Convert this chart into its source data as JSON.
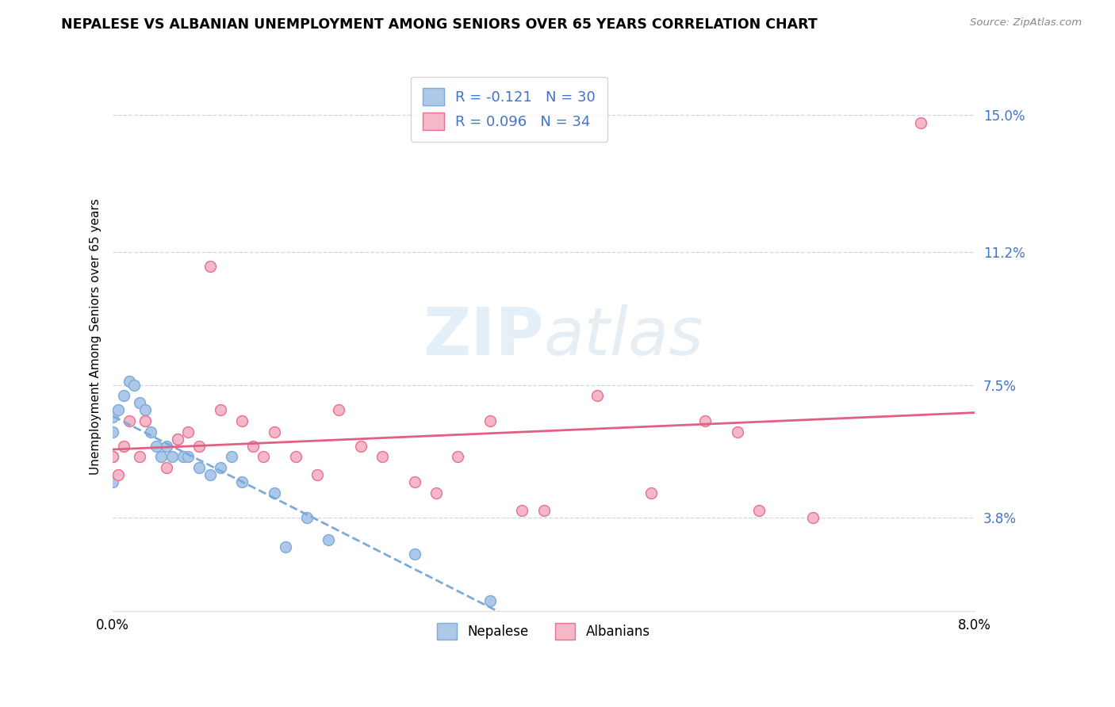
{
  "title": "NEPALESE VS ALBANIAN UNEMPLOYMENT AMONG SENIORS OVER 65 YEARS CORRELATION CHART",
  "source": "Source: ZipAtlas.com",
  "ylabel": "Unemployment Among Seniors over 65 years",
  "ytick_values": [
    3.8,
    7.5,
    11.2,
    15.0
  ],
  "ytick_labels": [
    "3.8%",
    "7.5%",
    "11.2%",
    "15.0%"
  ],
  "xtick_values": [
    0.0,
    8.0
  ],
  "xtick_labels": [
    "0.0%",
    "8.0%"
  ],
  "xmin": 0.0,
  "xmax": 8.0,
  "ymin": 1.2,
  "ymax": 16.5,
  "nepalese_fill": "#adc8e8",
  "nepalese_edge": "#7aabdc",
  "albanian_fill": "#f5b8c8",
  "albanian_edge": "#e87090",
  "nepalese_trend_color": "#7aabdc",
  "albanian_trend_color": "#e06080",
  "R_nepalese": -0.121,
  "N_nepalese": 30,
  "R_albanian": 0.096,
  "N_albanian": 34,
  "watermark_zip": "ZIP",
  "watermark_atlas": "atlas",
  "nepalese_x": [
    0.0,
    0.0,
    0.0,
    0.0,
    0.05,
    0.1,
    0.15,
    0.2,
    0.25,
    0.3,
    0.3,
    0.35,
    0.4,
    0.45,
    0.5,
    0.55,
    0.6,
    0.65,
    0.7,
    0.8,
    0.9,
    1.0,
    1.1,
    1.2,
    1.5,
    1.6,
    1.8,
    2.0,
    2.8,
    3.5
  ],
  "nepalese_y": [
    6.2,
    6.6,
    5.5,
    4.8,
    6.8,
    7.2,
    7.6,
    7.5,
    7.0,
    6.8,
    6.5,
    6.2,
    5.8,
    5.5,
    5.8,
    5.5,
    6.0,
    5.5,
    5.5,
    5.2,
    5.0,
    5.2,
    5.5,
    4.8,
    4.5,
    3.0,
    3.8,
    3.2,
    2.8,
    1.5
  ],
  "albanian_x": [
    0.0,
    0.05,
    0.1,
    0.15,
    0.25,
    0.3,
    0.5,
    0.6,
    0.7,
    0.8,
    0.9,
    1.0,
    1.2,
    1.3,
    1.4,
    1.5,
    1.7,
    1.9,
    2.1,
    2.3,
    2.5,
    2.8,
    3.0,
    3.2,
    3.5,
    3.8,
    4.0,
    4.5,
    5.0,
    5.5,
    5.8,
    6.0,
    6.5,
    7.5
  ],
  "albanian_y": [
    5.5,
    5.0,
    5.8,
    6.5,
    5.5,
    6.5,
    5.2,
    6.0,
    6.2,
    5.8,
    10.8,
    6.8,
    6.5,
    5.8,
    5.5,
    6.2,
    5.5,
    5.0,
    6.8,
    5.8,
    5.5,
    4.8,
    4.5,
    5.5,
    6.5,
    4.0,
    4.0,
    7.2,
    4.5,
    6.5,
    6.2,
    4.0,
    3.8,
    14.8
  ]
}
